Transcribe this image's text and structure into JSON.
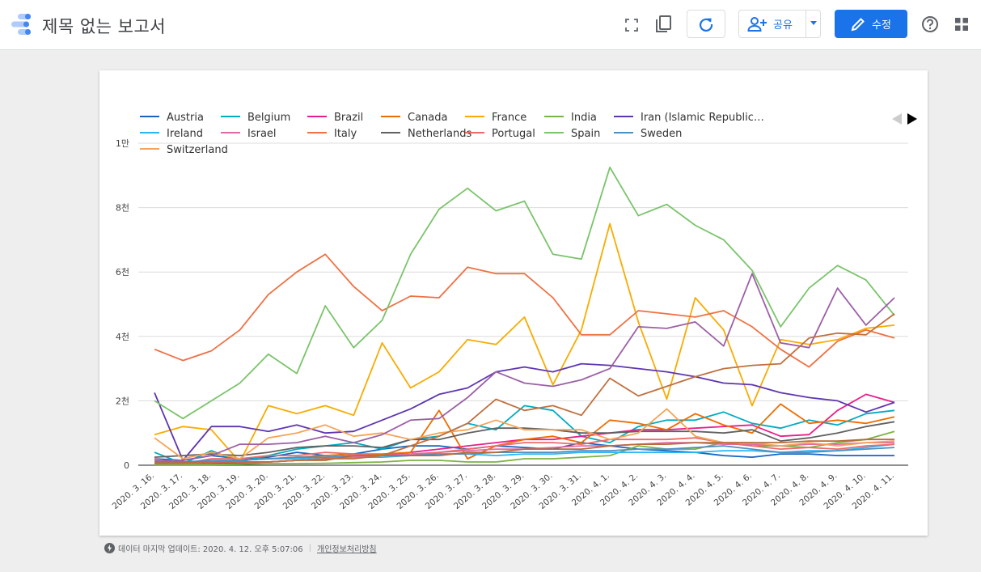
{
  "header": {
    "title": "제목 없는 보고서",
    "share_label": "공유",
    "edit_label": "수정"
  },
  "colors": {
    "accent": "#1a73e8",
    "logo_blue": "#4285f4",
    "logo_light": "#aecbfa"
  },
  "footer": {
    "updated": "데이터 마지막 업데이트: 2020. 4. 12. 오후 5:07:06",
    "privacy": "개인정보처리방침"
  },
  "chart_data": {
    "type": "line",
    "categories": [
      "2020. 3. 16.",
      "2020. 3. 17.",
      "2020. 3. 18.",
      "2020. 3. 19.",
      "2020. 3. 20.",
      "2020. 3. 21.",
      "2020. 3. 22.",
      "2020. 3. 23.",
      "2020. 3. 24.",
      "2020. 3. 25.",
      "2020. 3. 26.",
      "2020. 3. 27.",
      "2020. 3. 28.",
      "2020. 3. 29.",
      "2020. 3. 30.",
      "2020. 3. 31.",
      "2020. 4. 1.",
      "2020. 4. 2.",
      "2020. 4. 3.",
      "2020. 4. 4.",
      "2020. 4. 5.",
      "2020. 4. 6.",
      "2020. 4. 7.",
      "2020. 4. 8.",
      "2020. 4. 9.",
      "2020. 4. 10.",
      "2020. 4. 11."
    ],
    "ylim": [
      0,
      10000
    ],
    "yticks": [
      {
        "v": 0,
        "label": "0"
      },
      {
        "v": 2000,
        "label": "2천"
      },
      {
        "v": 4000,
        "label": "4천"
      },
      {
        "v": 6000,
        "label": "6천"
      },
      {
        "v": 8000,
        "label": "8천"
      },
      {
        "v": 10000,
        "label": "1만"
      }
    ],
    "grid": true,
    "legend_position": "top",
    "series": [
      {
        "name": "Austria",
        "color": "#1565c0",
        "values": [
          200,
          150,
          300,
          200,
          250,
          400,
          300,
          350,
          500,
          600,
          600,
          500,
          600,
          550,
          500,
          700,
          600,
          500,
          450,
          400,
          300,
          250,
          350,
          350,
          300,
          300,
          300
        ]
      },
      {
        "name": "Belgium",
        "color": "#00acc1",
        "values": [
          400,
          50,
          450,
          100,
          300,
          500,
          600,
          700,
          500,
          800,
          900,
          1300,
          1100,
          1850,
          1700,
          900,
          700,
          1200,
          1400,
          1400,
          1650,
          1300,
          1150,
          1400,
          1250,
          1600,
          1700
        ]
      },
      {
        "name": "Brazil",
        "color": "#e91e8c",
        "values": [
          50,
          50,
          50,
          60,
          100,
          150,
          200,
          250,
          300,
          400,
          500,
          600,
          700,
          800,
          800,
          900,
          1000,
          1100,
          1100,
          1150,
          1200,
          1250,
          900,
          950,
          1700,
          2200,
          1950
        ]
      },
      {
        "name": "Canada",
        "color": "#ef6c00",
        "values": [
          100,
          100,
          100,
          150,
          200,
          250,
          300,
          350,
          350,
          400,
          1700,
          200,
          600,
          800,
          900,
          700,
          1400,
          1300,
          1100,
          1600,
          1250,
          1000,
          1900,
          1300,
          1400,
          1300,
          1500
        ]
      },
      {
        "name": "France",
        "color": "#f9ab00",
        "values": [
          950,
          1200,
          1100,
          100,
          1850,
          1600,
          1850,
          1550,
          3800,
          2400,
          2900,
          3900,
          3750,
          4600,
          2500,
          4200,
          7500,
          4450,
          2050,
          5200,
          4200,
          1850,
          3900,
          3750,
          3900,
          4250,
          4350
        ]
      },
      {
        "name": "India",
        "color": "#7cb342",
        "values": [
          20,
          20,
          20,
          30,
          50,
          50,
          60,
          80,
          100,
          150,
          150,
          100,
          100,
          200,
          200,
          250,
          300,
          600,
          500,
          500,
          700,
          600,
          600,
          550,
          700,
          800,
          1050
        ]
      },
      {
        "name": "Iran (Islamic Republic…",
        "color": "#5e35b1",
        "values": [
          2250,
          150,
          1200,
          1200,
          1050,
          1250,
          1000,
          1050,
          1400,
          1750,
          2200,
          2400,
          2900,
          3050,
          2900,
          3150,
          3100,
          3000,
          2900,
          2750,
          2550,
          2500,
          2250,
          2100,
          2000,
          1650,
          1950
        ]
      },
      {
        "name": "Ireland",
        "color": "#29b6f6",
        "values": [
          100,
          100,
          100,
          150,
          200,
          200,
          250,
          250,
          250,
          300,
          350,
          350,
          300,
          350,
          350,
          400,
          400,
          400,
          400,
          400,
          450,
          450,
          400,
          450,
          450,
          550,
          650
        ]
      },
      {
        "name": "Israel",
        "color": "#e06aa7",
        "values": [
          50,
          50,
          100,
          100,
          100,
          150,
          200,
          250,
          300,
          350,
          400,
          450,
          500,
          500,
          550,
          600,
          600,
          650,
          700,
          700,
          650,
          650,
          600,
          650,
          650,
          700,
          700
        ]
      },
      {
        "name": "Italy",
        "color": "#f07043",
        "values": [
          3600,
          3250,
          3550,
          4200,
          5300,
          6000,
          6550,
          5550,
          4800,
          5250,
          5200,
          6150,
          5950,
          5950,
          5200,
          4050,
          4050,
          4800,
          4700,
          4600,
          4800,
          4300,
          3600,
          3050,
          3850,
          4200,
          3950
        ]
      },
      {
        "name": "Netherlands",
        "color": "#616161",
        "values": [
          250,
          300,
          350,
          300,
          400,
          550,
          600,
          600,
          550,
          800,
          800,
          1000,
          1150,
          1150,
          1100,
          1000,
          1000,
          1050,
          1050,
          1050,
          1000,
          1100,
          750,
          850,
          1000,
          1200,
          1350
        ]
      },
      {
        "name": "Portugal",
        "color": "#ec6a6a",
        "values": [
          200,
          50,
          200,
          200,
          300,
          300,
          400,
          350,
          300,
          300,
          400,
          500,
          600,
          700,
          700,
          650,
          800,
          800,
          800,
          850,
          700,
          600,
          500,
          550,
          500,
          600,
          650
        ]
      },
      {
        "name": "Spain",
        "color": "#7ac46a",
        "values": [
          2000,
          1450,
          2000,
          2550,
          3450,
          2850,
          4950,
          3650,
          4500,
          6550,
          7950,
          8600,
          7900,
          8200,
          6550,
          6400,
          9250,
          7750,
          8100,
          7450,
          7000,
          6050,
          4300,
          5500,
          6200,
          5750,
          4650
        ]
      },
      {
        "name": "Sweden",
        "color": "#4f8fc0",
        "values": [
          100,
          100,
          150,
          150,
          200,
          250,
          250,
          300,
          300,
          300,
          350,
          350,
          400,
          400,
          400,
          450,
          450,
          500,
          500,
          550,
          600,
          500,
          400,
          400,
          450,
          500,
          550
        ]
      },
      {
        "name": "Switzerland",
        "color": "#f6a356",
        "values": [
          850,
          200,
          400,
          200,
          850,
          1000,
          1250,
          900,
          1000,
          800,
          1000,
          1100,
          1400,
          1100,
          1100,
          1100,
          800,
          1000,
          1750,
          900,
          700,
          700,
          600,
          700,
          600,
          700,
          750
        ]
      },
      {
        "name": "",
        "color": "#9c5fa6",
        "values": [
          150,
          150,
          300,
          650,
          650,
          700,
          900,
          700,
          950,
          1400,
          1450,
          2100,
          2900,
          2550,
          2450,
          2650,
          3000,
          4300,
          4250,
          4450,
          3700,
          5950,
          3800,
          3650,
          5500,
          4350,
          5200
        ]
      },
      {
        "name": "",
        "color": "#b56b3c",
        "values": [
          100,
          100,
          100,
          100,
          100,
          150,
          150,
          300,
          300,
          300,
          300,
          400,
          400,
          500,
          500,
          500,
          600,
          650,
          650,
          700,
          700,
          700,
          700,
          750,
          750,
          800,
          800
        ]
      },
      {
        "name": "",
        "color": "#c0703e",
        "values": [
          50,
          50,
          100,
          100,
          100,
          150,
          200,
          200,
          300,
          600,
          900,
          1300,
          2050,
          1700,
          1850,
          1550,
          2700,
          2150,
          2450,
          2750,
          3000,
          3100,
          3150,
          3950,
          4100,
          4050,
          4700
        ]
      }
    ]
  }
}
